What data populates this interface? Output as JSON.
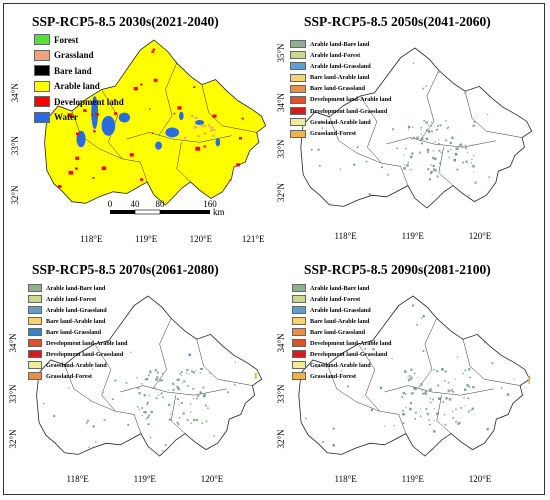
{
  "panels": [
    {
      "title": "SSP-RCP5-8.5 2030s(2021-2040)",
      "legend": [
        {
          "label": "Forest",
          "color": "#55e03a"
        },
        {
          "label": "Grassland",
          "color": "#f2a277"
        },
        {
          "label": "Bare land",
          "color": "#000000"
        },
        {
          "label": "Arable land",
          "color": "#ffff00"
        },
        {
          "label": "Development land",
          "color": "#ff0000"
        },
        {
          "label": "Water",
          "color": "#2a6be0"
        }
      ],
      "lat_ticks": [
        "34°N",
        "33°N",
        "32°N"
      ],
      "lon_ticks": [
        "118°E",
        "119°E",
        "120°E",
        "121°E"
      ],
      "scale_ticks": [
        "0",
        "40",
        "80",
        "160"
      ],
      "scale_unit": "km"
    },
    {
      "title": "SSP-RCP5-8.5 2050s(2041-2060)",
      "legend": [
        {
          "label": "Arable land-Bare land",
          "color": "#8fb08f"
        },
        {
          "label": "Arable land-Forest",
          "color": "#c9d98f"
        },
        {
          "label": "Arable land-Grassland",
          "color": "#5f9ec9"
        },
        {
          "label": "Bare land-Arable land",
          "color": "#f5d66e"
        },
        {
          "label": "Bare land-Grassland",
          "color": "#e8904a"
        },
        {
          "label": "Development land-Arable land",
          "color": "#e0502a"
        },
        {
          "label": "Development land-Grassland",
          "color": "#d41c1c"
        },
        {
          "label": "Grassland-Arable land",
          "color": "#f0ea9a"
        },
        {
          "label": "Grassland-Forest",
          "color": "#f0b24a"
        }
      ],
      "lat_ticks": [
        "35°N",
        "34°N",
        "33°N",
        "32°N"
      ],
      "lon_ticks": [
        "118°E",
        "119°E",
        "120°E"
      ]
    },
    {
      "title": "SSP-RCP5-8.5 2070s(2061-2080)",
      "legend": [
        {
          "label": "Arable land-Bare land",
          "color": "#8fb08f"
        },
        {
          "label": "Arable land-Forest",
          "color": "#c9d98f"
        },
        {
          "label": "Arable land-Grassland",
          "color": "#5f9ec9"
        },
        {
          "label": "Bare land-Arable land",
          "color": "#f5d66e"
        },
        {
          "label": "Bare land-Grassland",
          "color": "#3b82c4"
        },
        {
          "label": "Development land-Arable land",
          "color": "#e0502a"
        },
        {
          "label": "Development land-Grassland",
          "color": "#d41c1c"
        },
        {
          "label": "Grassland-Arable land",
          "color": "#f0ea9a"
        },
        {
          "label": "Grassland-Forest",
          "color": "#e8904a"
        }
      ],
      "lat_ticks": [
        "34°N",
        "33°N",
        "32°N"
      ],
      "lon_ticks": [
        "118°E",
        "119°E",
        "120°E"
      ]
    },
    {
      "title": "SSP-RCP5-8.5 2090s(2081-2100)",
      "legend": [
        {
          "label": "Arable land-Bare land",
          "color": "#8fb08f"
        },
        {
          "label": "Arable land-Forest",
          "color": "#c9d98f"
        },
        {
          "label": "Arable land-Grassland",
          "color": "#5f9ec9"
        },
        {
          "label": "Bare land-Arable land",
          "color": "#f5d66e"
        },
        {
          "label": "Bare land-Grassland",
          "color": "#e8904a"
        },
        {
          "label": "Development land-Arable land",
          "color": "#e0502a"
        },
        {
          "label": "Development land-Grassland",
          "color": "#d41c1c"
        },
        {
          "label": "Grassland-Arable land",
          "color": "#f0ea9a"
        },
        {
          "label": "Grassland-Forest",
          "color": "#f0b24a"
        }
      ],
      "lat_ticks": [
        "34°N",
        "33°N",
        "32°N"
      ],
      "lon_ticks": [
        "118°E",
        "119°E",
        "120°E"
      ]
    }
  ]
}
